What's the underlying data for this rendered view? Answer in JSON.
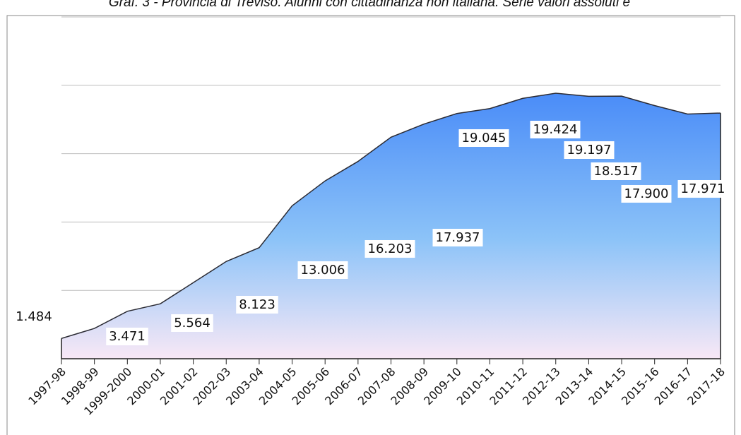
{
  "chart_data": {
    "type": "area",
    "title": "Graf. 3 - Provincia di Treviso. Alunni con cittadinanza non italiana. Serie valori assoluti e",
    "categories": [
      "1997-98",
      "1998-99",
      "1999-2000",
      "2000-01",
      "2001-02",
      "2002-03",
      "2003-04",
      "2004-05",
      "2005-06",
      "2006-07",
      "2007-08",
      "2008-09",
      "2009-10",
      "2010-11",
      "2011-12",
      "2012-13",
      "2013-14",
      "2014-15",
      "2015-16",
      "2016-17",
      "2017-18"
    ],
    "values": [
      1484,
      2216,
      3471,
      4020,
      5564,
      7113,
      8123,
      11186,
      13006,
      14433,
      16203,
      17165,
      17937,
      18299,
      19045,
      19424,
      19197,
      19210,
      18517,
      17900,
      17971
    ],
    "value_labels": [
      "1.484",
      null,
      "3.471",
      null,
      "5.564",
      null,
      "8.123",
      null,
      "13.006",
      null,
      "16.203",
      null,
      "17.937",
      null,
      "19.045",
      "19.424",
      "19.197",
      null,
      "18.517",
      "17.900",
      "17.971"
    ],
    "color": "#5b9bf8",
    "ylim": [
      0,
      25000
    ],
    "yticks": [
      0,
      5000,
      10000,
      15000,
      20000,
      25000
    ],
    "grid": true
  }
}
